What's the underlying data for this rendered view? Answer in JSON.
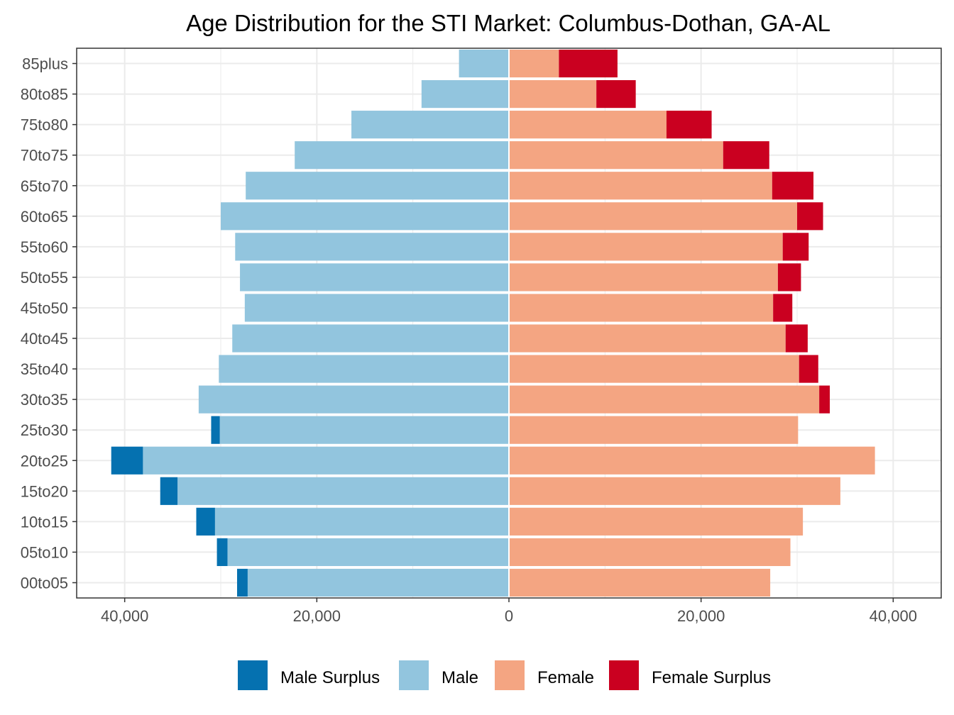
{
  "chart_data": {
    "type": "bar",
    "title": "Age Distribution for the STI Market: Columbus-Dothan,  GA-AL",
    "xlabel": "",
    "ylabel": "",
    "orientation": "horizontal",
    "xlim": [
      -45000,
      45000
    ],
    "x_ticks": [
      -40000,
      -20000,
      0,
      20000,
      40000
    ],
    "x_tick_labels": [
      "40,000",
      "20,000",
      "0",
      "20,000",
      "40,000"
    ],
    "grid": true,
    "legend_position": "bottom",
    "categories": [
      "00to05",
      "05to10",
      "10to15",
      "15to20",
      "20to25",
      "25to30",
      "30to35",
      "35to40",
      "40to45",
      "45to50",
      "50to55",
      "55to60",
      "60to65",
      "65to70",
      "70to75",
      "75to80",
      "80to85",
      "85plus"
    ],
    "series": [
      {
        "name": "Male Surplus",
        "color": "#0571b0",
        "values": [
          1100,
          1100,
          1950,
          1800,
          3300,
          900,
          0,
          0,
          0,
          0,
          0,
          0,
          0,
          0,
          0,
          0,
          0,
          0
        ]
      },
      {
        "name": "Male",
        "color": "#92c5de",
        "values": [
          27200,
          29300,
          30600,
          34500,
          38100,
          30100,
          32300,
          30200,
          28800,
          27500,
          28000,
          28500,
          30000,
          27400,
          22300,
          16400,
          9100,
          5200
        ]
      },
      {
        "name": "Female",
        "color": "#f4a582",
        "values": [
          27200,
          29300,
          30600,
          34500,
          38100,
          30100,
          32300,
          30200,
          28800,
          27500,
          28000,
          28500,
          30000,
          27400,
          22300,
          16400,
          9100,
          5200
        ]
      },
      {
        "name": "Female Surplus",
        "color": "#ca0020",
        "values": [
          0,
          0,
          0,
          0,
          0,
          0,
          1100,
          2000,
          2300,
          2000,
          2400,
          2700,
          2700,
          4300,
          4800,
          4700,
          4100,
          6100
        ]
      }
    ]
  }
}
